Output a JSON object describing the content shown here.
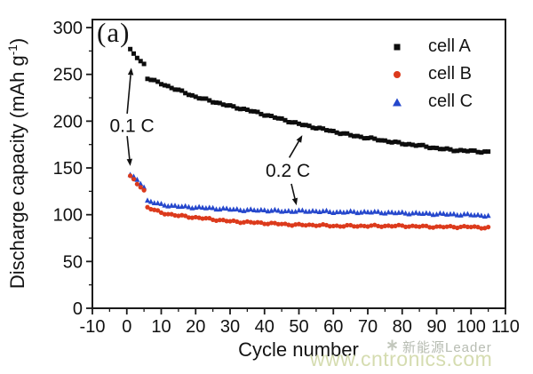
{
  "figure": {
    "panel_label": "(a)",
    "background": "#ffffff",
    "frame_color": "#1a1a1a"
  },
  "chart_data": {
    "type": "scatter",
    "title": "",
    "xlabel": "Cycle number",
    "ylabel": "Discharge capacity (mAh g-1)",
    "ylabel_parts": {
      "pre": "Discharge capacity (mAh g",
      "sup": "-1",
      "post": ")"
    },
    "xlim": [
      -10,
      110
    ],
    "ylim": [
      0,
      308.6
    ],
    "xticks": [
      -10,
      0,
      10,
      20,
      30,
      40,
      50,
      60,
      70,
      80,
      90,
      100,
      110
    ],
    "yticks": [
      0,
      50,
      100,
      150,
      200,
      250,
      300
    ],
    "minor_xticks": [
      -5,
      5,
      15,
      25,
      35,
      45,
      55,
      65,
      75,
      85,
      95,
      105
    ],
    "minor_yticks": [
      25,
      75,
      125,
      175,
      225,
      275
    ],
    "grid": false,
    "legend_position": "upper-right",
    "series": [
      {
        "name": "cell A",
        "marker": "square",
        "color": "#0d0d0d",
        "segments": [
          {
            "rate": "0.1 C",
            "anchors": [
              [
                1,
                276
              ],
              [
                2,
                272
              ],
              [
                3,
                268
              ],
              [
                4,
                264
              ],
              [
                5,
                261
              ]
            ]
          },
          {
            "rate": "0.2 C",
            "anchors": [
              [
                6,
                246
              ],
              [
                8,
                243
              ],
              [
                10,
                240
              ],
              [
                15,
                233
              ],
              [
                20,
                226
              ],
              [
                25,
                221
              ],
              [
                30,
                216
              ],
              [
                35,
                212
              ],
              [
                40,
                207
              ],
              [
                45,
                202
              ],
              [
                50,
                197
              ],
              [
                55,
                193
              ],
              [
                60,
                189
              ],
              [
                65,
                185
              ],
              [
                70,
                182
              ],
              [
                75,
                179
              ],
              [
                80,
                176
              ],
              [
                85,
                174
              ],
              [
                90,
                171
              ],
              [
                95,
                169
              ],
              [
                100,
                168
              ],
              [
                105,
                167
              ]
            ]
          }
        ]
      },
      {
        "name": "cell B",
        "marker": "circle",
        "color": "#dc3a1c",
        "segments": [
          {
            "rate": "0.1 C",
            "anchors": [
              [
                1,
                141
              ],
              [
                2,
                137
              ],
              [
                3,
                133
              ],
              [
                4,
                130
              ],
              [
                5,
                126
              ]
            ]
          },
          {
            "rate": "0.2 C",
            "anchors": [
              [
                6,
                108
              ],
              [
                8,
                105
              ],
              [
                10,
                102
              ],
              [
                15,
                99
              ],
              [
                20,
                97
              ],
              [
                25,
                95
              ],
              [
                30,
                93
              ],
              [
                35,
                92
              ],
              [
                40,
                91
              ],
              [
                45,
                90
              ],
              [
                50,
                89
              ],
              [
                55,
                89
              ],
              [
                60,
                88
              ],
              [
                70,
                88
              ],
              [
                80,
                88
              ],
              [
                90,
                87
              ],
              [
                100,
                87
              ],
              [
                105,
                86
              ]
            ]
          }
        ]
      },
      {
        "name": "cell C",
        "marker": "triangle",
        "color": "#2547cc",
        "segments": [
          {
            "rate": "0.1 C",
            "anchors": [
              [
                1,
                143
              ],
              [
                2,
                140
              ],
              [
                3,
                137
              ],
              [
                4,
                134
              ],
              [
                5,
                130
              ]
            ]
          },
          {
            "rate": "0.2 C",
            "anchors": [
              [
                6,
                115
              ],
              [
                8,
                113
              ],
              [
                10,
                111
              ],
              [
                15,
                109
              ],
              [
                20,
                108
              ],
              [
                25,
                107
              ],
              [
                30,
                106
              ],
              [
                35,
                105
              ],
              [
                40,
                105
              ],
              [
                45,
                104
              ],
              [
                50,
                104
              ],
              [
                55,
                104
              ],
              [
                60,
                103
              ],
              [
                70,
                103
              ],
              [
                80,
                102
              ],
              [
                90,
                101
              ],
              [
                100,
                100
              ],
              [
                105,
                99
              ]
            ]
          }
        ]
      }
    ],
    "annotations": [
      {
        "text": "0.1 C",
        "x": 1.5,
        "y": 195,
        "arrows": [
          {
            "from": [
              0.1,
              208
            ],
            "to": [
              1.3,
              257
            ]
          },
          {
            "from": [
              0.1,
              184
            ],
            "to": [
              1.0,
              152
            ]
          }
        ]
      },
      {
        "text": "0.2 C",
        "x": 46.8,
        "y": 147,
        "arrows": [
          {
            "from": [
              47.2,
              161
            ],
            "to": [
              51.0,
              185
            ]
          },
          {
            "from": [
              47.8,
              133
            ],
            "to": [
              49.3,
              110
            ]
          }
        ]
      }
    ]
  },
  "watermark": {
    "logo_icon": "star-burst",
    "brand_text": "新能源Leader",
    "url_text": "www.cntronics.com",
    "brand_color": "#b7bcb2",
    "url_color": "#d5dcb0"
  }
}
